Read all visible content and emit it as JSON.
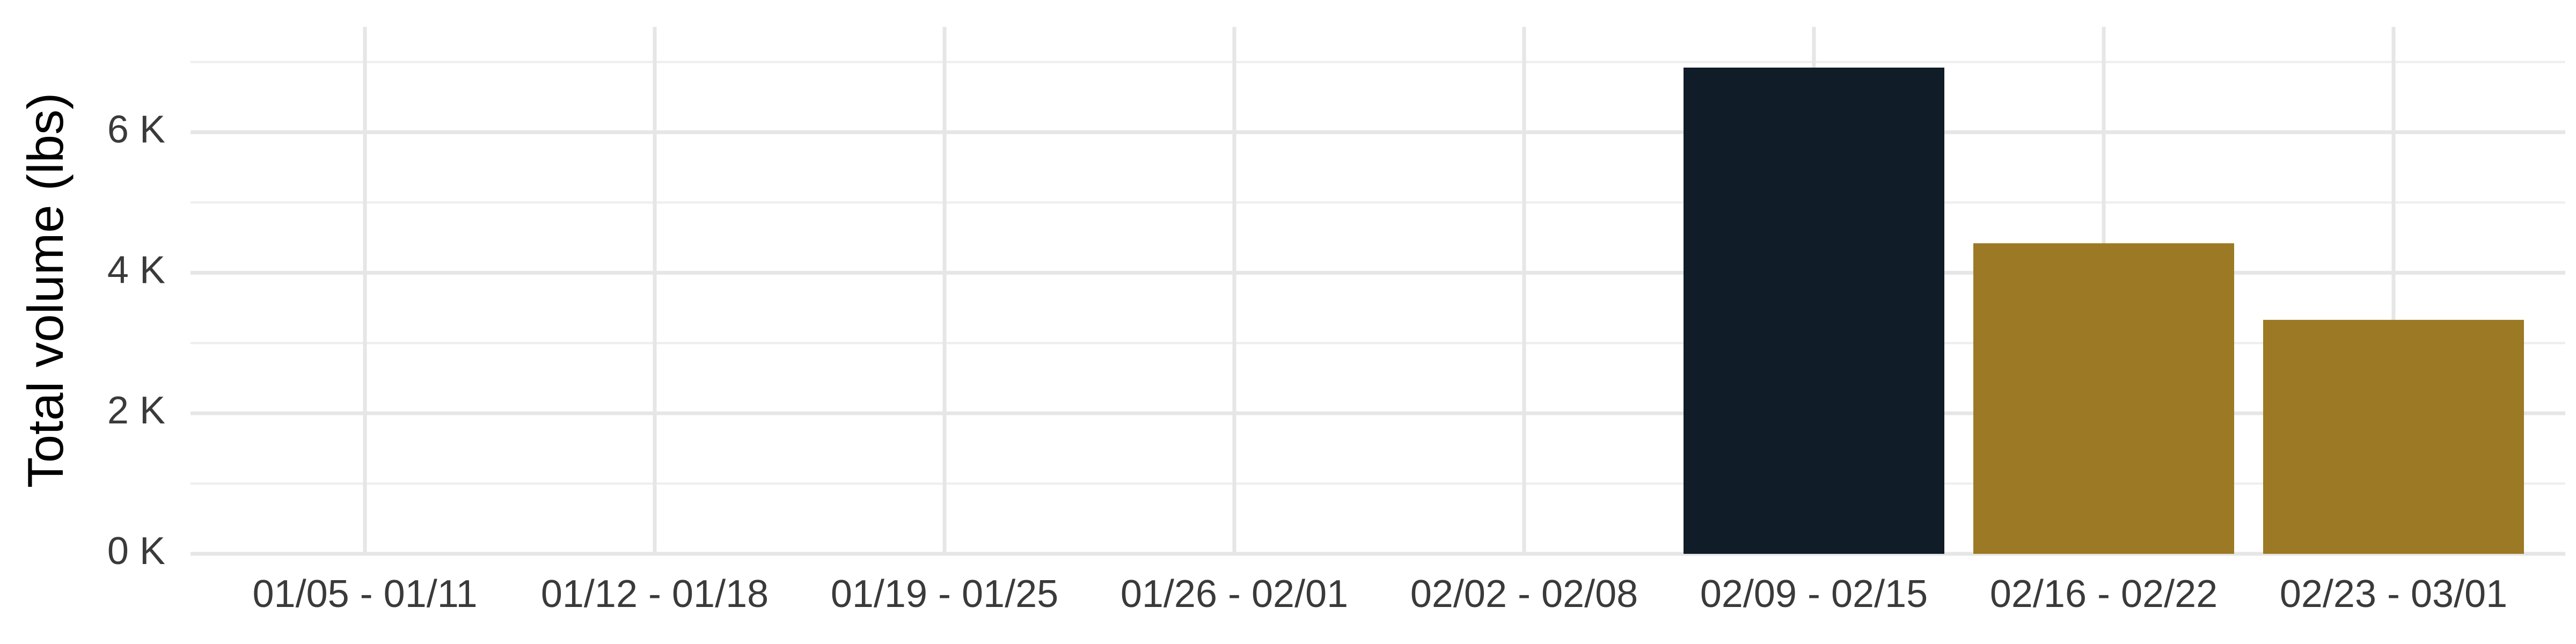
{
  "chart_data": {
    "type": "bar",
    "title": "",
    "xlabel": "",
    "ylabel": "Total volume (lbs)",
    "ylim": [
      0,
      7500
    ],
    "yticks": [
      0,
      2000,
      4000,
      6000
    ],
    "ytick_labels": [
      "0 K",
      "2 K",
      "4 K",
      "6 K"
    ],
    "y_minor_ticks": [
      1000,
      3000,
      5000,
      7000
    ],
    "grid": true,
    "legend": "none",
    "categories": [
      "01/05 - 01/11",
      "01/12 - 01/18",
      "01/19 - 01/25",
      "01/26 - 02/01",
      "02/02 - 02/08",
      "02/09 - 02/15",
      "02/16 - 02/22",
      "02/23 - 03/01"
    ],
    "values": [
      0,
      0,
      0,
      0,
      0,
      6920,
      4420,
      3330
    ],
    "bar_colors": [
      "#9c7924",
      "#9c7924",
      "#9c7924",
      "#9c7924",
      "#9c7924",
      "#101c28",
      "#9c7924",
      "#9c7924"
    ]
  }
}
